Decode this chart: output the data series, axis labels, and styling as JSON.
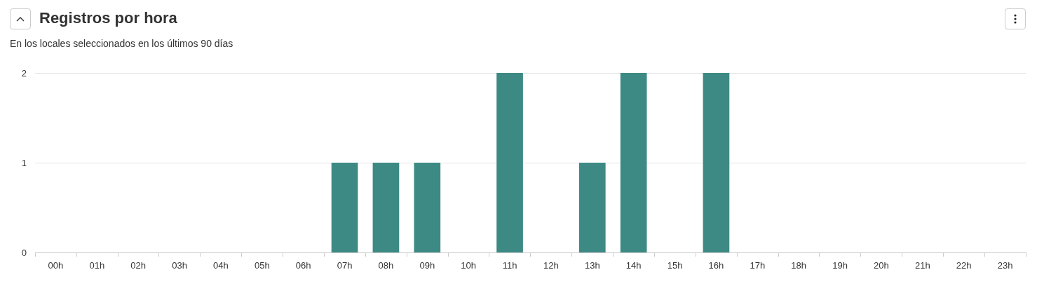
{
  "chart_data": {
    "type": "bar",
    "title": "Registros por hora",
    "subtitle": "En los locales seleccionados en los últimos 90 días",
    "categories": [
      "00h",
      "01h",
      "02h",
      "03h",
      "04h",
      "05h",
      "06h",
      "07h",
      "08h",
      "09h",
      "10h",
      "11h",
      "12h",
      "13h",
      "14h",
      "15h",
      "16h",
      "17h",
      "18h",
      "19h",
      "20h",
      "21h",
      "22h",
      "23h"
    ],
    "values": [
      0,
      0,
      0,
      0,
      0,
      0,
      0,
      1,
      1,
      1,
      0,
      2,
      0,
      1,
      2,
      0,
      2,
      0,
      0,
      0,
      0,
      0,
      0,
      0
    ],
    "color": "#3d8a84",
    "ylim": [
      0,
      2
    ],
    "yticks": [
      0,
      1,
      2
    ],
    "grid": "y"
  }
}
